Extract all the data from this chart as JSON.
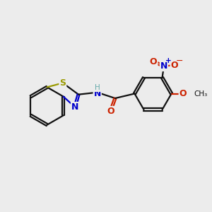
{
  "bg_color": "#ececec",
  "bond_color": "#111111",
  "s_color": "#999900",
  "n_color": "#0000cc",
  "o_color": "#cc2200",
  "h_color": "#66aaaa",
  "lw": 1.6,
  "fig_size": [
    3.0,
    3.0
  ],
  "dpi": 100,
  "xlim": [
    0,
    10
  ],
  "ylim": [
    1.5,
    8.5
  ]
}
